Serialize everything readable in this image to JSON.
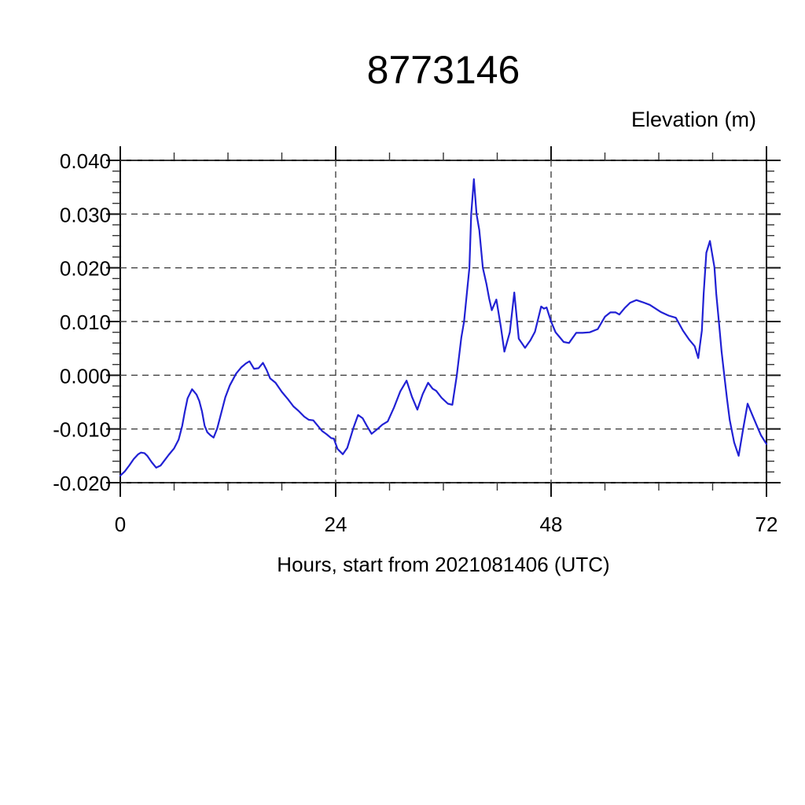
{
  "window": {
    "background": "#ffffff"
  },
  "chart_data": {
    "type": "line",
    "title": "8773146",
    "right_axis_label": "Elevation (m)",
    "xlabel": "Hours, start from 2021081406 (UTC)",
    "ylabel": "",
    "xlim": [
      0,
      72
    ],
    "ylim": [
      -0.02,
      0.04
    ],
    "grid": "dashed",
    "legend": "none",
    "x_major_ticks": [
      0,
      24,
      48,
      72
    ],
    "x_tick_labels": [
      "0",
      "24",
      "48",
      "72"
    ],
    "x_minor_step": 6,
    "x_gridlines": [
      24,
      48
    ],
    "y_major_ticks": [
      0.04,
      0.03,
      0.02,
      0.01,
      0.0,
      -0.01,
      -0.02
    ],
    "y_tick_labels": [
      "0.040",
      "0.030",
      "0.020",
      "0.010",
      "0.000",
      "-0.010",
      "-0.020"
    ],
    "y_minor_step": 0.002,
    "line_color": "#2121d4",
    "frame_color": "#000000",
    "grid_color": "#444444",
    "series": [
      {
        "name": "elevation",
        "points": [
          [
            0.0,
            -0.0187
          ],
          [
            0.5,
            -0.0179
          ],
          [
            1.0,
            -0.0168
          ],
          [
            1.5,
            -0.0156
          ],
          [
            2.0,
            -0.0147
          ],
          [
            2.3,
            -0.0144
          ],
          [
            2.7,
            -0.0145
          ],
          [
            3.0,
            -0.015
          ],
          [
            3.5,
            -0.0162
          ],
          [
            4.0,
            -0.0172
          ],
          [
            4.5,
            -0.0168
          ],
          [
            5.0,
            -0.0157
          ],
          [
            5.4,
            -0.0148
          ],
          [
            6.0,
            -0.0136
          ],
          [
            6.5,
            -0.012
          ],
          [
            6.9,
            -0.0094
          ],
          [
            7.2,
            -0.0067
          ],
          [
            7.5,
            -0.0043
          ],
          [
            8.0,
            -0.0026
          ],
          [
            8.5,
            -0.0036
          ],
          [
            8.8,
            -0.0048
          ],
          [
            9.1,
            -0.0067
          ],
          [
            9.4,
            -0.0094
          ],
          [
            9.7,
            -0.0106
          ],
          [
            10.0,
            -0.0111
          ],
          [
            10.4,
            -0.0116
          ],
          [
            10.8,
            -0.0099
          ],
          [
            11.3,
            -0.0067
          ],
          [
            11.7,
            -0.0041
          ],
          [
            12.2,
            -0.0019
          ],
          [
            12.9,
            0.0003
          ],
          [
            13.5,
            0.0015
          ],
          [
            14.0,
            0.0022
          ],
          [
            14.4,
            0.0026
          ],
          [
            14.9,
            0.0012
          ],
          [
            15.4,
            0.0013
          ],
          [
            15.9,
            0.0023
          ],
          [
            16.3,
            0.001
          ],
          [
            16.7,
            -0.0006
          ],
          [
            17.3,
            -0.0014
          ],
          [
            18.0,
            -0.0031
          ],
          [
            18.7,
            -0.0045
          ],
          [
            19.3,
            -0.0058
          ],
          [
            19.9,
            -0.0067
          ],
          [
            20.5,
            -0.0077
          ],
          [
            21.0,
            -0.0083
          ],
          [
            21.5,
            -0.0084
          ],
          [
            22.0,
            -0.0094
          ],
          [
            22.5,
            -0.0104
          ],
          [
            23.0,
            -0.011
          ],
          [
            23.5,
            -0.0117
          ],
          [
            23.8,
            -0.0118
          ],
          [
            24.2,
            -0.0137
          ],
          [
            24.8,
            -0.0147
          ],
          [
            25.3,
            -0.0135
          ],
          [
            26.0,
            -0.0097
          ],
          [
            26.5,
            -0.0074
          ],
          [
            27.0,
            -0.008
          ],
          [
            27.5,
            -0.0095
          ],
          [
            28.0,
            -0.0109
          ],
          [
            28.6,
            -0.0101
          ],
          [
            29.2,
            -0.0092
          ],
          [
            29.8,
            -0.0086
          ],
          [
            30.5,
            -0.006
          ],
          [
            31.2,
            -0.003
          ],
          [
            31.9,
            -0.001
          ],
          [
            32.5,
            -0.004
          ],
          [
            33.1,
            -0.0064
          ],
          [
            33.7,
            -0.0035
          ],
          [
            34.3,
            -0.0014
          ],
          [
            34.8,
            -0.0025
          ],
          [
            35.2,
            -0.0029
          ],
          [
            35.8,
            -0.0042
          ],
          [
            36.5,
            -0.0053
          ],
          [
            37.0,
            -0.0055
          ],
          [
            37.5,
            0.0
          ],
          [
            38.0,
            0.007
          ],
          [
            38.3,
            0.01
          ],
          [
            38.9,
            0.02
          ],
          [
            39.1,
            0.03
          ],
          [
            39.4,
            0.0365
          ],
          [
            39.7,
            0.03
          ],
          [
            40.0,
            0.027
          ],
          [
            40.4,
            0.02
          ],
          [
            40.8,
            0.017
          ],
          [
            41.1,
            0.0143
          ],
          [
            41.4,
            0.0121
          ],
          [
            41.9,
            0.0141
          ],
          [
            42.4,
            0.009
          ],
          [
            42.8,
            0.0044
          ],
          [
            43.4,
            0.008
          ],
          [
            43.9,
            0.0154
          ],
          [
            44.4,
            0.0068
          ],
          [
            45.1,
            0.0051
          ],
          [
            45.7,
            0.0065
          ],
          [
            46.2,
            0.0081
          ],
          [
            46.9,
            0.0128
          ],
          [
            47.2,
            0.0124
          ],
          [
            47.5,
            0.0126
          ],
          [
            48.0,
            0.01
          ],
          [
            48.5,
            0.008
          ],
          [
            48.9,
            0.0072
          ],
          [
            49.4,
            0.0062
          ],
          [
            50.0,
            0.006
          ],
          [
            50.8,
            0.0079
          ],
          [
            51.5,
            0.0079
          ],
          [
            52.3,
            0.008
          ],
          [
            53.2,
            0.0086
          ],
          [
            54.0,
            0.0109
          ],
          [
            54.6,
            0.0117
          ],
          [
            55.2,
            0.0117
          ],
          [
            55.6,
            0.0113
          ],
          [
            56.2,
            0.0125
          ],
          [
            56.8,
            0.0135
          ],
          [
            57.5,
            0.014
          ],
          [
            58.2,
            0.0136
          ],
          [
            59.0,
            0.0131
          ],
          [
            60.2,
            0.0118
          ],
          [
            61.1,
            0.0111
          ],
          [
            61.9,
            0.0107
          ],
          [
            62.7,
            0.0083
          ],
          [
            63.4,
            0.0066
          ],
          [
            64.0,
            0.0054
          ],
          [
            64.4,
            0.0032
          ],
          [
            64.8,
            0.0083
          ],
          [
            65.0,
            0.0152
          ],
          [
            65.3,
            0.0228
          ],
          [
            65.7,
            0.025
          ],
          [
            66.2,
            0.0201
          ],
          [
            66.4,
            0.0152
          ],
          [
            66.7,
            0.0099
          ],
          [
            67.0,
            0.0044
          ],
          [
            67.3,
            0.0
          ],
          [
            67.6,
            -0.0044
          ],
          [
            67.9,
            -0.0083
          ],
          [
            68.4,
            -0.0125
          ],
          [
            68.9,
            -0.015
          ],
          [
            69.4,
            -0.01
          ],
          [
            69.9,
            -0.0053
          ],
          [
            70.4,
            -0.0073
          ],
          [
            71.0,
            -0.0097
          ],
          [
            71.4,
            -0.0112
          ],
          [
            72.0,
            -0.0128
          ]
        ]
      }
    ]
  }
}
